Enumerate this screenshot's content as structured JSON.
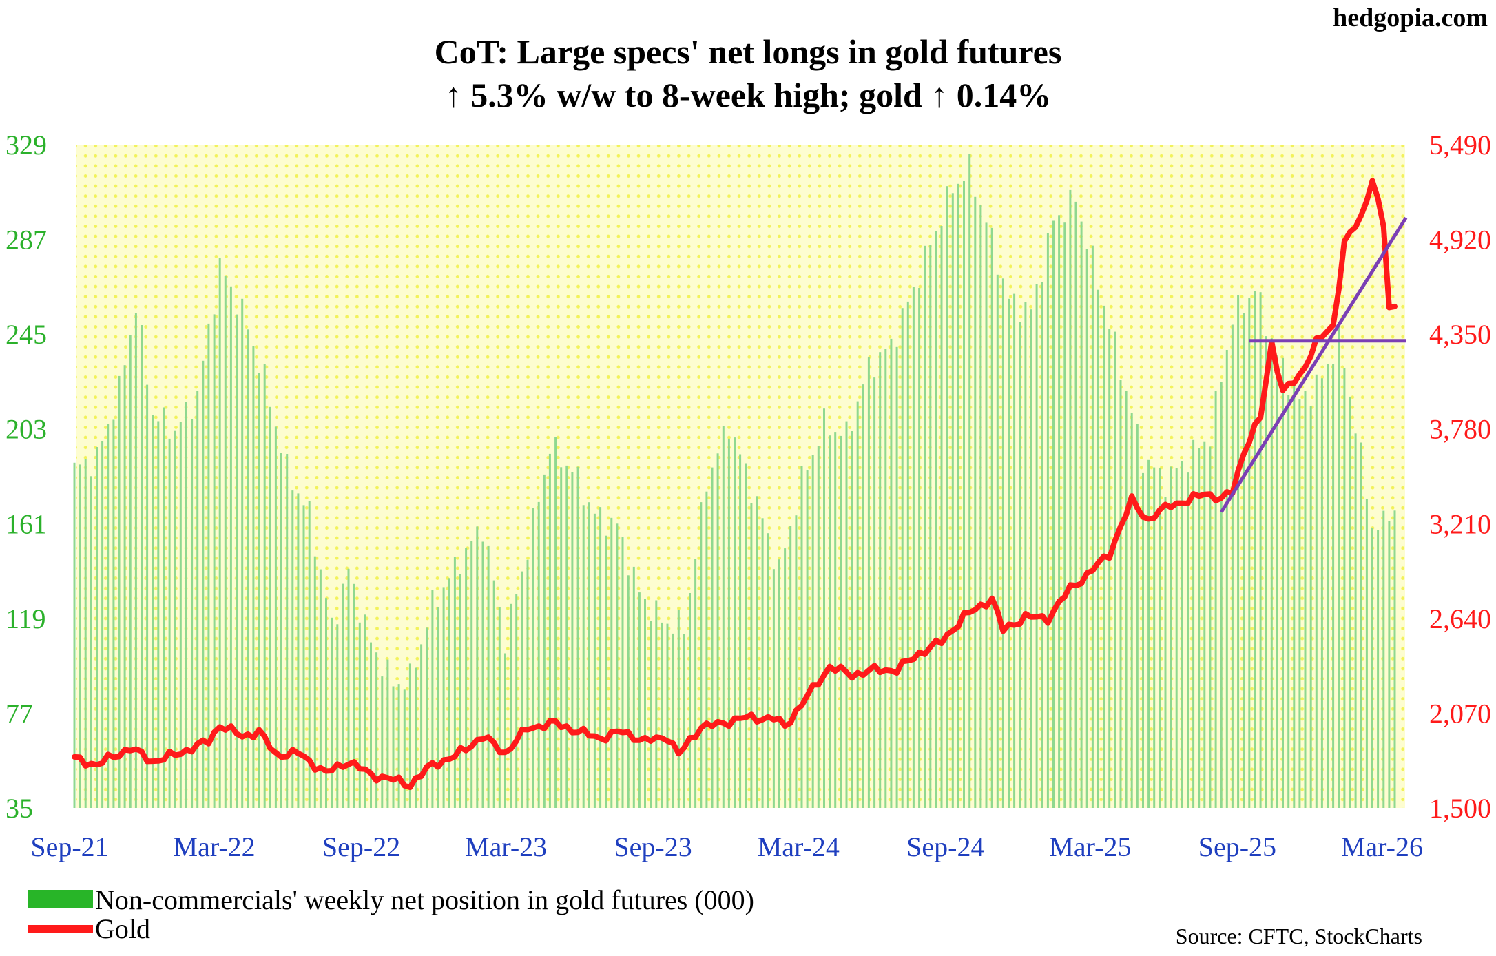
{
  "brand": "hedgopia.com",
  "source": "Source: CFTC, StockCharts",
  "chart_data": {
    "type": "bar+line",
    "title": "CoT: Large specs' net longs in gold futures",
    "subtitle": "↑ 5.3% w/w to 8-week high; gold ↑ 0.14%",
    "x_tick_labels": [
      "Sep-21",
      "Mar-22",
      "Sep-22",
      "Mar-23",
      "Sep-23",
      "Mar-24",
      "Sep-24",
      "Mar-25",
      "Sep-25",
      "Mar-26"
    ],
    "y_left": {
      "ticks": [
        "35",
        "77",
        "119",
        "161",
        "203",
        "245",
        "287",
        "329"
      ],
      "range": [
        35,
        329
      ],
      "color": "#2bb12b"
    },
    "y_right": {
      "ticks": [
        "1,500",
        "2,070",
        "2,640",
        "3,210",
        "3,780",
        "4,350",
        "4,920",
        "5,490"
      ],
      "range": [
        1500,
        5490
      ],
      "color": "#ff1a1a"
    },
    "background": {
      "color": "#fdfdd0",
      "dot_color": "#f2f25a",
      "grid": "dotted"
    },
    "series": [
      {
        "name": "Non-commercials' weekly net position in gold futures (000)",
        "type": "bar",
        "axis": "left",
        "color": "#8fd88f",
        "anchors": [
          [
            "2021-09-07",
            185
          ],
          [
            "2021-10-05",
            190
          ],
          [
            "2021-11-02",
            220
          ],
          [
            "2021-11-23",
            258
          ],
          [
            "2021-12-14",
            210
          ],
          [
            "2022-01-11",
            202
          ],
          [
            "2022-02-08",
            218
          ],
          [
            "2022-03-08",
            275
          ],
          [
            "2022-04-05",
            255
          ],
          [
            "2022-05-03",
            225
          ],
          [
            "2022-05-31",
            185
          ],
          [
            "2022-06-28",
            165
          ],
          [
            "2022-07-26",
            115
          ],
          [
            "2022-08-16",
            140
          ],
          [
            "2022-09-13",
            108
          ],
          [
            "2022-10-11",
            90
          ],
          [
            "2022-11-01",
            92
          ],
          [
            "2022-11-29",
            125
          ],
          [
            "2023-01-03",
            145
          ],
          [
            "2023-01-31",
            160
          ],
          [
            "2023-02-28",
            110
          ],
          [
            "2023-03-28",
            150
          ],
          [
            "2023-04-25",
            195
          ],
          [
            "2023-05-23",
            185
          ],
          [
            "2023-06-20",
            165
          ],
          [
            "2023-07-18",
            160
          ],
          [
            "2023-08-15",
            130
          ],
          [
            "2023-09-12",
            118
          ],
          [
            "2023-10-10",
            115
          ],
          [
            "2023-11-07",
            180
          ],
          [
            "2023-12-05",
            205
          ],
          [
            "2024-01-09",
            170
          ],
          [
            "2024-02-06",
            140
          ],
          [
            "2024-03-05",
            180
          ],
          [
            "2024-04-02",
            205
          ],
          [
            "2024-04-30",
            200
          ],
          [
            "2024-05-28",
            230
          ],
          [
            "2024-06-25",
            240
          ],
          [
            "2024-07-23",
            265
          ],
          [
            "2024-08-13",
            285
          ],
          [
            "2024-09-10",
            310
          ],
          [
            "2024-10-01",
            318
          ],
          [
            "2024-10-22",
            295
          ],
          [
            "2024-11-19",
            260
          ],
          [
            "2024-12-17",
            255
          ],
          [
            "2025-01-14",
            295
          ],
          [
            "2025-02-11",
            305
          ],
          [
            "2025-03-11",
            268
          ],
          [
            "2025-04-08",
            230
          ],
          [
            "2025-05-06",
            190
          ],
          [
            "2025-06-03",
            180
          ],
          [
            "2025-07-01",
            190
          ],
          [
            "2025-07-29",
            200
          ],
          [
            "2025-08-26",
            252
          ],
          [
            "2025-09-23",
            265
          ],
          [
            "2025-10-21",
            235
          ],
          [
            "2025-11-18",
            215
          ],
          [
            "2025-12-16",
            225
          ],
          [
            "2026-01-06",
            244
          ],
          [
            "2026-01-27",
            205
          ],
          [
            "2026-02-17",
            160
          ],
          [
            "2026-03-03",
            160
          ],
          [
            "2026-03-10",
            167
          ]
        ]
      },
      {
        "name": "Gold",
        "type": "line",
        "axis": "right",
        "color": "#ff1a1a",
        "anchors": [
          [
            "2021-09-07",
            1795
          ],
          [
            "2021-10-05",
            1760
          ],
          [
            "2021-11-16",
            1860
          ],
          [
            "2021-12-14",
            1780
          ],
          [
            "2022-01-11",
            1820
          ],
          [
            "2022-02-22",
            1900
          ],
          [
            "2022-03-08",
            2000
          ],
          [
            "2022-04-05",
            1930
          ],
          [
            "2022-04-26",
            1960
          ],
          [
            "2022-05-17",
            1820
          ],
          [
            "2022-06-14",
            1830
          ],
          [
            "2022-07-19",
            1710
          ],
          [
            "2022-08-16",
            1780
          ],
          [
            "2022-09-13",
            1700
          ],
          [
            "2022-10-11",
            1670
          ],
          [
            "2022-11-01",
            1640
          ],
          [
            "2022-11-29",
            1760
          ],
          [
            "2022-12-27",
            1810
          ],
          [
            "2023-01-31",
            1930
          ],
          [
            "2023-02-28",
            1830
          ],
          [
            "2023-03-28",
            1980
          ],
          [
            "2023-05-02",
            2010
          ],
          [
            "2023-05-30",
            1960
          ],
          [
            "2023-06-27",
            1920
          ],
          [
            "2023-07-25",
            1960
          ],
          [
            "2023-08-22",
            1900
          ],
          [
            "2023-09-19",
            1930
          ],
          [
            "2023-10-03",
            1820
          ],
          [
            "2023-10-31",
            1990
          ],
          [
            "2023-11-21",
            2000
          ],
          [
            "2023-12-19",
            2040
          ],
          [
            "2024-01-30",
            2040
          ],
          [
            "2024-02-13",
            1990
          ],
          [
            "2024-03-12",
            2170
          ],
          [
            "2024-04-09",
            2350
          ],
          [
            "2024-05-07",
            2300
          ],
          [
            "2024-06-04",
            2330
          ],
          [
            "2024-07-02",
            2330
          ],
          [
            "2024-07-30",
            2430
          ],
          [
            "2024-08-27",
            2500
          ],
          [
            "2024-09-24",
            2650
          ],
          [
            "2024-10-29",
            2760
          ],
          [
            "2024-11-12",
            2570
          ],
          [
            "2024-12-10",
            2650
          ],
          [
            "2025-01-07",
            2640
          ],
          [
            "2025-02-04",
            2820
          ],
          [
            "2025-02-25",
            2900
          ],
          [
            "2025-03-25",
            3030
          ],
          [
            "2025-04-22",
            3350
          ],
          [
            "2025-05-13",
            3230
          ],
          [
            "2025-06-10",
            3330
          ],
          [
            "2025-07-01",
            3340
          ],
          [
            "2025-07-22",
            3400
          ],
          [
            "2025-08-12",
            3350
          ],
          [
            "2025-08-26",
            3410
          ],
          [
            "2025-09-09",
            3640
          ],
          [
            "2025-09-30",
            3850
          ],
          [
            "2025-10-14",
            4300
          ],
          [
            "2025-10-28",
            4000
          ],
          [
            "2025-11-18",
            4100
          ],
          [
            "2025-12-09",
            4300
          ],
          [
            "2025-12-30",
            4400
          ],
          [
            "2026-01-13",
            4900
          ],
          [
            "2026-02-03",
            5050
          ],
          [
            "2026-02-17",
            5290
          ],
          [
            "2026-03-03",
            5000
          ],
          [
            "2026-03-10",
            4500
          ],
          [
            "2026-03-17",
            4510
          ]
        ]
      }
    ],
    "annotations": [
      {
        "type": "horizontal-line",
        "color": "#7b3fb5",
        "axis": "right",
        "y": 4310,
        "x_from": "2025-09-16",
        "x_to": "2026-03-31"
      },
      {
        "type": "trend-line",
        "color": "#7b3fb5",
        "axis": "right",
        "from": [
          "2025-08-12",
          3280
        ],
        "to": [
          "2026-03-31",
          5050
        ]
      }
    ],
    "legend": {
      "placement": "bottom-left"
    }
  }
}
